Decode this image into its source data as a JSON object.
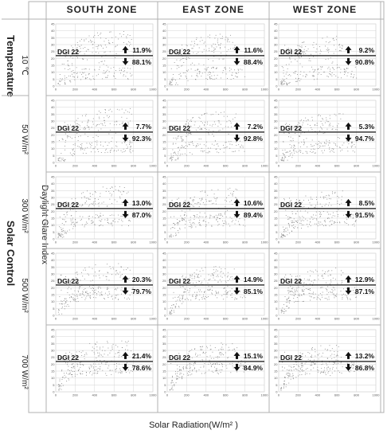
{
  "zones": [
    "SOUTH ZONE",
    "EAST ZONE",
    "WEST ZONE"
  ],
  "groups": {
    "top": "Temperature",
    "bottom": "Solar Control"
  },
  "rows": [
    "10 ℃",
    "50 W/m²",
    "300 W/m²",
    "500 W/m²",
    "700 W/m²"
  ],
  "y_title": "Daylight Glare Index",
  "x_title": "Solar Radiation(W/m² )",
  "colors": {
    "points": "#8a8a8a",
    "line": "#111111",
    "grid": "#d4d4d4",
    "frame": "#b0b0b0"
  },
  "chart_data": {
    "type": "scatter",
    "xlim": [
      0,
      1000
    ],
    "ylim": [
      0,
      45
    ],
    "x_ticks": [
      "0",
      "200",
      "400",
      "600",
      "800",
      "1000"
    ],
    "y_ticks": [
      "0",
      "5",
      "10",
      "15",
      "20",
      "25",
      "30",
      "35",
      "40",
      "45"
    ],
    "threshold": {
      "label": "DGI 22",
      "value": 22
    },
    "grid": true,
    "panels": [
      {
        "row": 0,
        "zone": 0,
        "above": "11.9%",
        "below": "88.1%"
      },
      {
        "row": 0,
        "zone": 1,
        "above": "11.6%",
        "below": "88.4%"
      },
      {
        "row": 0,
        "zone": 2,
        "above": "9.2%",
        "below": "90.8%"
      },
      {
        "row": 1,
        "zone": 0,
        "above": "7.7%",
        "below": "92.3%"
      },
      {
        "row": 1,
        "zone": 1,
        "above": "7.2%",
        "below": "92.8%"
      },
      {
        "row": 1,
        "zone": 2,
        "above": "5.3%",
        "below": "94.7%"
      },
      {
        "row": 2,
        "zone": 0,
        "above": "13.0%",
        "below": "87.0%"
      },
      {
        "row": 2,
        "zone": 1,
        "above": "10.6%",
        "below": "89.4%"
      },
      {
        "row": 2,
        "zone": 2,
        "above": "8.5%",
        "below": "91.5%"
      },
      {
        "row": 3,
        "zone": 0,
        "above": "20.3%",
        "below": "79.7%"
      },
      {
        "row": 3,
        "zone": 1,
        "above": "14.9%",
        "below": "85.1%"
      },
      {
        "row": 3,
        "zone": 2,
        "above": "12.9%",
        "below": "87.1%"
      },
      {
        "row": 4,
        "zone": 0,
        "above": "21.4%",
        "below": "78.6%"
      },
      {
        "row": 4,
        "zone": 1,
        "above": "15.1%",
        "below": "84.9%"
      },
      {
        "row": 4,
        "zone": 2,
        "above": "13.2%",
        "below": "86.8%"
      }
    ]
  }
}
